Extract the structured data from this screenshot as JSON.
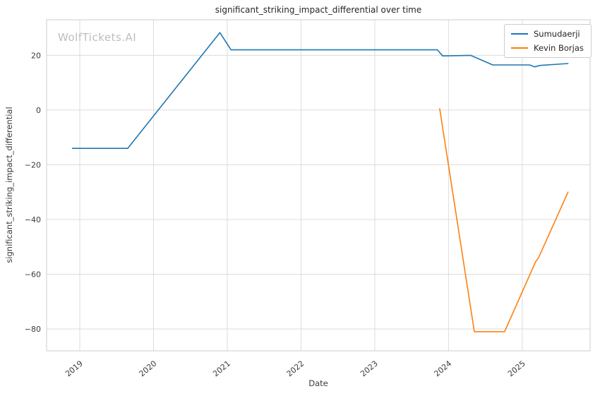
{
  "chart_data": {
    "type": "line",
    "title": "significant_striking_impact_differential over time",
    "xlabel": "Date",
    "ylabel": "significant_striking_impact_differential",
    "watermark": "WolfTickets.AI",
    "grid": true,
    "legend_position": "upper right",
    "xlim": [
      2018.55,
      2025.92
    ],
    "ylim": [
      -88,
      33
    ],
    "x_ticks": [
      2019,
      2020,
      2021,
      2022,
      2023,
      2024,
      2025
    ],
    "y_ticks": [
      20,
      0,
      -20,
      -40,
      -60,
      -80
    ],
    "series": [
      {
        "name": "Sumudaerji",
        "color": "#1f77b4",
        "points": [
          [
            2018.9,
            -14
          ],
          [
            2019.65,
            -14
          ],
          [
            2020.9,
            28.3
          ],
          [
            2021.05,
            22
          ],
          [
            2023.85,
            22
          ],
          [
            2023.92,
            19.8
          ],
          [
            2024.3,
            20.0
          ],
          [
            2024.6,
            16.5
          ],
          [
            2025.1,
            16.5
          ],
          [
            2025.17,
            15.8
          ],
          [
            2025.24,
            16.3
          ],
          [
            2025.62,
            17.0
          ]
        ]
      },
      {
        "name": "Kevin Borjas",
        "color": "#ff7f0e",
        "points": [
          [
            2023.88,
            0.5
          ],
          [
            2024.35,
            -81
          ],
          [
            2024.76,
            -81
          ],
          [
            2025.18,
            -55.5
          ],
          [
            2025.22,
            -54
          ],
          [
            2025.62,
            -30
          ]
        ]
      }
    ]
  },
  "style_colors": {
    "grid": "#dcdcdc",
    "plot_border": "#cccccc",
    "tick_text": "#3a3a3a"
  }
}
